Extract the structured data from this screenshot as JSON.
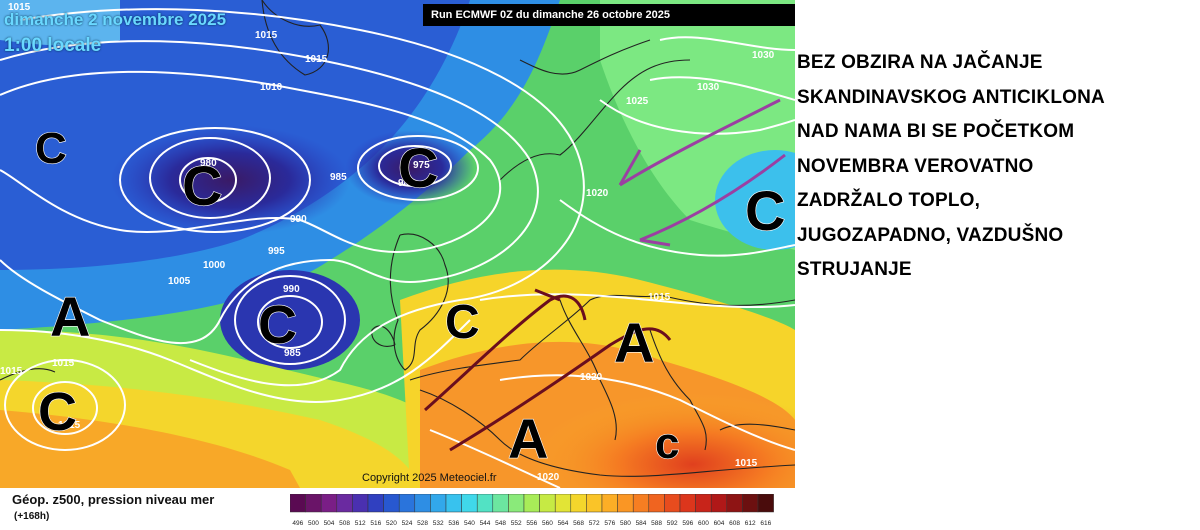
{
  "map": {
    "date_line_1": "dimanche 2 novembre 2025",
    "date_line_2": "1:00 locale",
    "run_banner": "Run ECMWF 0Z du dimanche 26 octobre 2025",
    "copyright": "Copyright 2025 Meteociel.fr",
    "pressure_systems": [
      {
        "symbol": "C"
      },
      {
        "symbol": "C"
      },
      {
        "symbol": "C"
      },
      {
        "symbol": "C"
      },
      {
        "symbol": "C"
      },
      {
        "symbol": "C"
      },
      {
        "symbol": "C"
      },
      {
        "symbol": "c"
      },
      {
        "symbol": "A"
      },
      {
        "symbol": "A"
      },
      {
        "symbol": "A"
      }
    ],
    "isobar_labels": [
      "1015",
      "1015",
      "1010",
      "1015",
      "980",
      "985",
      "975",
      "985",
      "990",
      "995",
      "1000",
      "1005",
      "990",
      "985",
      "1015",
      "1030",
      "1030",
      "1025",
      "1020",
      "1015",
      "1020",
      "1020",
      "1015",
      "1015",
      "1015"
    ]
  },
  "annotation": {
    "text": "BEZ OBZIRA NA JAČANJE\nSKANDINAVSKOG ANTICIKLONA\nNAD NAMA BI SE POČETKOM\nNOVEMBRA VEROVATNO\nZADRŽALO TOPLO,\nJUGOZAPADNO, VAZDUŠNO\nSTRUJANJE"
  },
  "legend": {
    "caption": "Géop. z500, pression niveau mer",
    "sub_caption": "(+168h)",
    "tick_labels": [
      "496",
      "500",
      "504",
      "508",
      "512",
      "516",
      "520",
      "524",
      "528",
      "532",
      "536",
      "540",
      "544",
      "548",
      "552",
      "556",
      "560",
      "564",
      "568",
      "572",
      "576",
      "580",
      "584",
      "588",
      "592",
      "596",
      "600",
      "604",
      "608",
      "612",
      "616"
    ],
    "colors": [
      "#5a0a52",
      "#6a1468",
      "#7a1e86",
      "#6a2aa0",
      "#4a30b0",
      "#3040c0",
      "#2858d0",
      "#2a74dc",
      "#2e8ee4",
      "#32a8ea",
      "#38c2ee",
      "#40d8ea",
      "#52e2c4",
      "#6ce6a0",
      "#8aea7a",
      "#a8ec58",
      "#c6ea44",
      "#e2e436",
      "#f4d62c",
      "#fac428",
      "#fcae26",
      "#fa9624",
      "#f67e22",
      "#f06420",
      "#e84c1e",
      "#dc361c",
      "#c8241a",
      "#b01818",
      "#8e1414",
      "#6c1010",
      "#4a0c0c"
    ]
  }
}
